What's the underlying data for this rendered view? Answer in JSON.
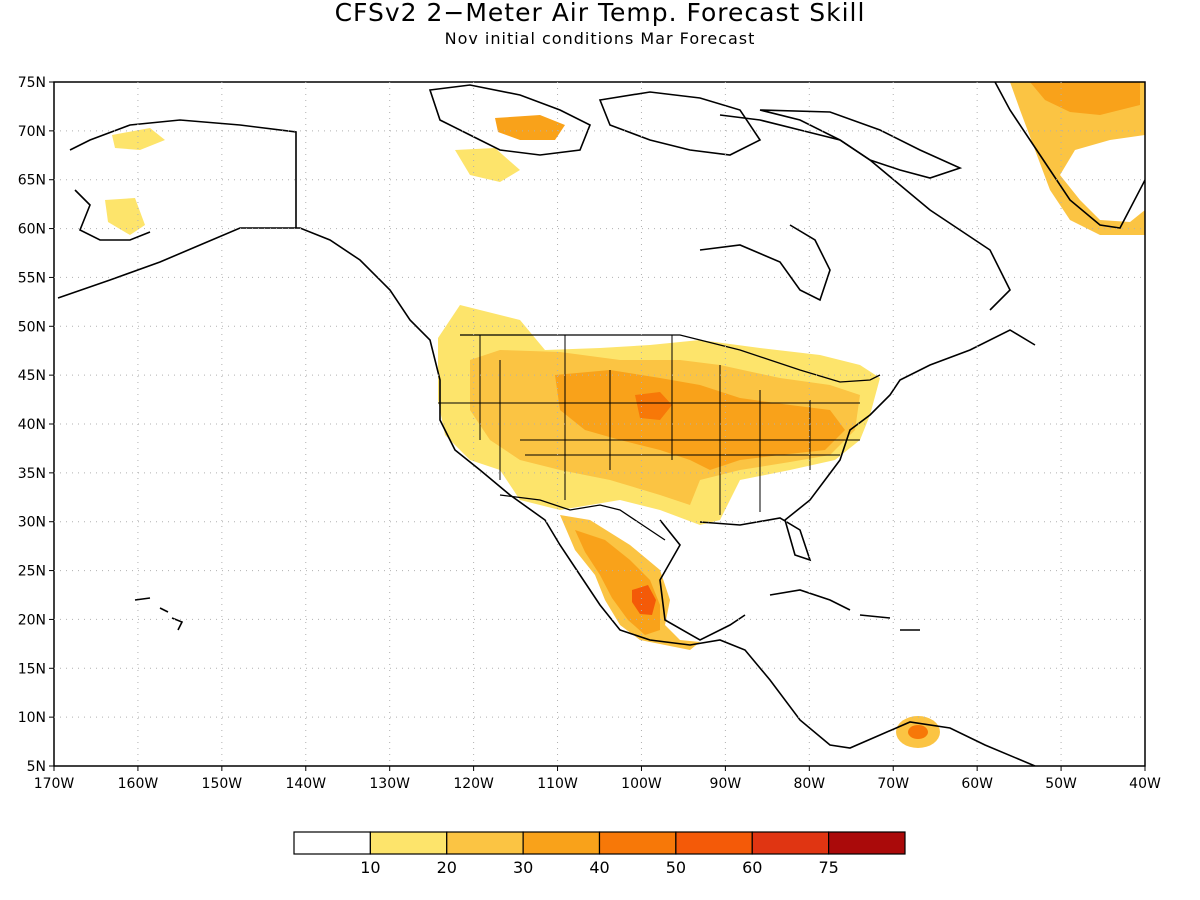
{
  "title": "CFSv2 2−Meter Air Temp. Forecast Skill",
  "subtitle": "Nov initial conditions  Mar Forecast",
  "map": {
    "lon_range": [
      -170,
      -40
    ],
    "lat_range": [
      5,
      75
    ],
    "lat_ticks": [
      "75N",
      "70N",
      "65N",
      "60N",
      "55N",
      "50N",
      "45N",
      "40N",
      "35N",
      "30N",
      "25N",
      "20N",
      "15N",
      "10N",
      "5N"
    ],
    "lon_ticks": [
      "170W",
      "160W",
      "150W",
      "140W",
      "130W",
      "120W",
      "110W",
      "100W",
      "90W",
      "80W",
      "70W",
      "60W",
      "50W",
      "40W"
    ],
    "grid": true,
    "colors": {
      "land_outline": "#000000",
      "grid_line": "#b0b0b0"
    }
  },
  "colorbar": {
    "labels": [
      "10",
      "20",
      "30",
      "40",
      "50",
      "60",
      "75"
    ],
    "colors": [
      "#ffffff",
      "#fde46b",
      "#fbc443",
      "#f9a21a",
      "#f77808",
      "#f45a08",
      "#e03512",
      "#aa0a0a"
    ]
  },
  "skill_regions": [
    {
      "lon": -119,
      "lat": 40,
      "value": 20
    },
    {
      "lon": -107,
      "lat": 42,
      "value": 30
    },
    {
      "lon": -97,
      "lat": 42,
      "value": 40
    },
    {
      "lon": -88,
      "lat": 39,
      "value": 30
    },
    {
      "lon": -82,
      "lat": 40,
      "value": 30
    },
    {
      "lon": -100,
      "lat": 25,
      "value": 30
    },
    {
      "lon": -99,
      "lat": 22,
      "value": 50
    },
    {
      "lon": -67,
      "lat": 8.5,
      "value": 40
    },
    {
      "lon": -48,
      "lat": 73,
      "value": 30
    },
    {
      "lon": -44,
      "lat": 62,
      "value": 30
    },
    {
      "lon": -118,
      "lat": 70.5,
      "value": 30
    }
  ]
}
